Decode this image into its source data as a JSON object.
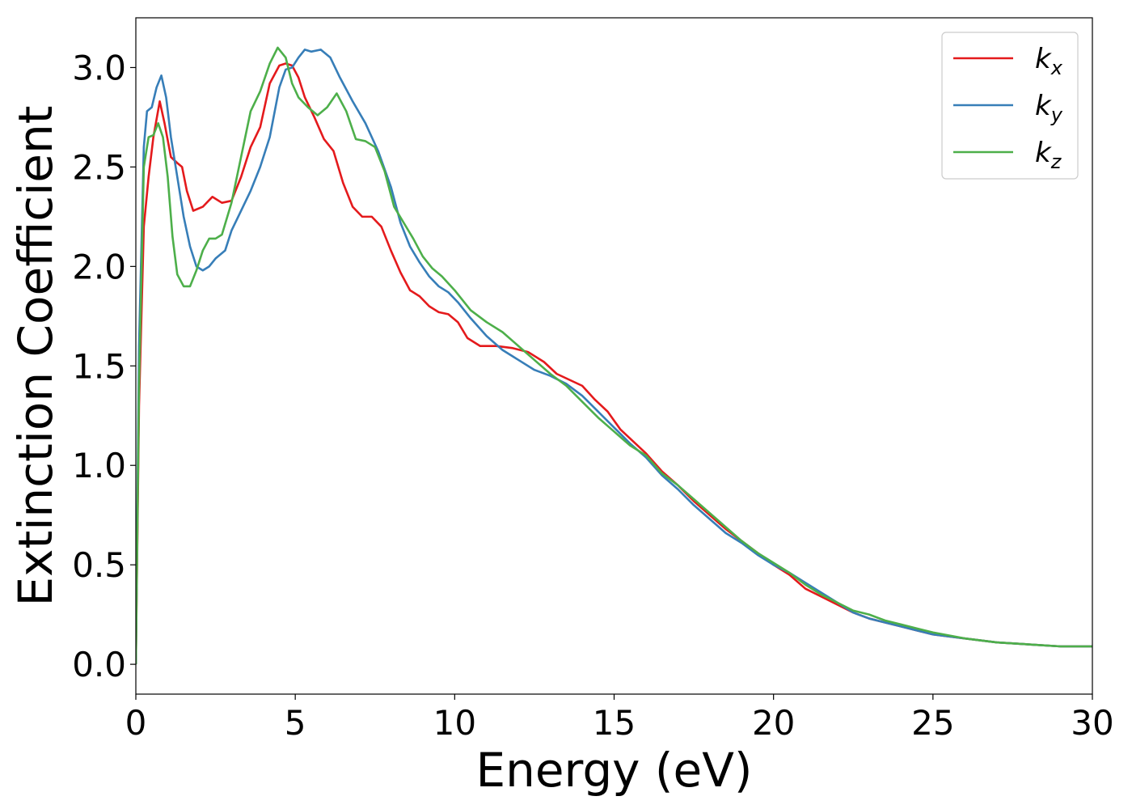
{
  "chart_data": {
    "type": "line",
    "xlabel": "Energy (eV)",
    "ylabel": "Extinction Coefficient",
    "xlim": [
      0,
      30
    ],
    "ylim": [
      -0.15,
      3.25
    ],
    "xticks": [
      0,
      5,
      10,
      15,
      20,
      25,
      30
    ],
    "yticks": [
      0.0,
      0.5,
      1.0,
      1.5,
      2.0,
      2.5,
      3.0
    ],
    "xtick_labels": [
      "0",
      "5",
      "10",
      "15",
      "20",
      "25",
      "30"
    ],
    "ytick_labels": [
      "0.0",
      "0.5",
      "1.0",
      "1.5",
      "2.0",
      "2.5",
      "3.0"
    ],
    "grid": false,
    "legend_position": "top-right",
    "series": [
      {
        "name": "k_x",
        "label_base": "k",
        "label_sub": "x",
        "color": "#e41a1c",
        "points": [
          [
            0,
            0
          ],
          [
            0.1,
            1.3
          ],
          [
            0.25,
            2.2
          ],
          [
            0.4,
            2.45
          ],
          [
            0.55,
            2.65
          ],
          [
            0.75,
            2.83
          ],
          [
            0.9,
            2.72
          ],
          [
            1.1,
            2.55
          ],
          [
            1.3,
            2.52
          ],
          [
            1.45,
            2.5
          ],
          [
            1.6,
            2.38
          ],
          [
            1.8,
            2.28
          ],
          [
            2.1,
            2.3
          ],
          [
            2.4,
            2.35
          ],
          [
            2.7,
            2.32
          ],
          [
            3.0,
            2.33
          ],
          [
            3.3,
            2.45
          ],
          [
            3.6,
            2.6
          ],
          [
            3.9,
            2.7
          ],
          [
            4.2,
            2.92
          ],
          [
            4.5,
            3.01
          ],
          [
            4.7,
            3.02
          ],
          [
            4.9,
            3.01
          ],
          [
            5.1,
            2.95
          ],
          [
            5.3,
            2.85
          ],
          [
            5.6,
            2.75
          ],
          [
            5.9,
            2.64
          ],
          [
            6.2,
            2.58
          ],
          [
            6.5,
            2.42
          ],
          [
            6.8,
            2.3
          ],
          [
            7.1,
            2.25
          ],
          [
            7.4,
            2.25
          ],
          [
            7.7,
            2.2
          ],
          [
            8.0,
            2.08
          ],
          [
            8.3,
            1.97
          ],
          [
            8.6,
            1.88
          ],
          [
            8.9,
            1.85
          ],
          [
            9.2,
            1.8
          ],
          [
            9.5,
            1.77
          ],
          [
            9.8,
            1.76
          ],
          [
            10.1,
            1.72
          ],
          [
            10.4,
            1.64
          ],
          [
            10.8,
            1.6
          ],
          [
            11.3,
            1.6
          ],
          [
            11.8,
            1.59
          ],
          [
            12.3,
            1.57
          ],
          [
            12.8,
            1.52
          ],
          [
            13.2,
            1.46
          ],
          [
            13.6,
            1.43
          ],
          [
            14.0,
            1.4
          ],
          [
            14.4,
            1.33
          ],
          [
            14.8,
            1.27
          ],
          [
            15.2,
            1.18
          ],
          [
            15.6,
            1.12
          ],
          [
            16.0,
            1.06
          ],
          [
            16.5,
            0.97
          ],
          [
            17.0,
            0.9
          ],
          [
            17.5,
            0.82
          ],
          [
            18.0,
            0.75
          ],
          [
            18.5,
            0.68
          ],
          [
            19.0,
            0.62
          ],
          [
            19.5,
            0.56
          ],
          [
            20.0,
            0.5
          ],
          [
            20.5,
            0.45
          ],
          [
            21.0,
            0.38
          ],
          [
            21.5,
            0.34
          ],
          [
            22.0,
            0.3
          ],
          [
            22.5,
            0.26
          ],
          [
            23.0,
            0.23
          ],
          [
            23.5,
            0.21
          ],
          [
            24.0,
            0.19
          ],
          [
            24.5,
            0.17
          ],
          [
            25.0,
            0.15
          ],
          [
            25.5,
            0.14
          ],
          [
            26.0,
            0.13
          ],
          [
            27.0,
            0.11
          ],
          [
            28.0,
            0.1
          ],
          [
            29.0,
            0.09
          ],
          [
            30.0,
            0.09
          ]
        ]
      },
      {
        "name": "k_y",
        "label_base": "k",
        "label_sub": "y",
        "color": "#377eb8",
        "points": [
          [
            0,
            0
          ],
          [
            0.1,
            1.6
          ],
          [
            0.25,
            2.6
          ],
          [
            0.35,
            2.78
          ],
          [
            0.5,
            2.8
          ],
          [
            0.65,
            2.9
          ],
          [
            0.8,
            2.96
          ],
          [
            0.95,
            2.85
          ],
          [
            1.1,
            2.65
          ],
          [
            1.3,
            2.45
          ],
          [
            1.5,
            2.25
          ],
          [
            1.7,
            2.1
          ],
          [
            1.9,
            2.0
          ],
          [
            2.1,
            1.98
          ],
          [
            2.3,
            2.0
          ],
          [
            2.5,
            2.04
          ],
          [
            2.8,
            2.08
          ],
          [
            3.0,
            2.18
          ],
          [
            3.3,
            2.28
          ],
          [
            3.6,
            2.38
          ],
          [
            3.9,
            2.5
          ],
          [
            4.2,
            2.65
          ],
          [
            4.5,
            2.9
          ],
          [
            4.7,
            2.99
          ],
          [
            4.9,
            3.0
          ],
          [
            5.1,
            3.05
          ],
          [
            5.3,
            3.09
          ],
          [
            5.5,
            3.08
          ],
          [
            5.8,
            3.09
          ],
          [
            6.1,
            3.05
          ],
          [
            6.4,
            2.95
          ],
          [
            6.8,
            2.83
          ],
          [
            7.2,
            2.72
          ],
          [
            7.6,
            2.58
          ],
          [
            8.0,
            2.4
          ],
          [
            8.3,
            2.22
          ],
          [
            8.6,
            2.1
          ],
          [
            8.9,
            2.02
          ],
          [
            9.2,
            1.95
          ],
          [
            9.5,
            1.9
          ],
          [
            9.8,
            1.87
          ],
          [
            10.1,
            1.82
          ],
          [
            10.5,
            1.74
          ],
          [
            11.0,
            1.65
          ],
          [
            11.5,
            1.58
          ],
          [
            12.0,
            1.53
          ],
          [
            12.5,
            1.48
          ],
          [
            13.0,
            1.45
          ],
          [
            13.5,
            1.41
          ],
          [
            14.0,
            1.35
          ],
          [
            14.5,
            1.27
          ],
          [
            15.0,
            1.19
          ],
          [
            15.5,
            1.11
          ],
          [
            16.0,
            1.04
          ],
          [
            16.5,
            0.95
          ],
          [
            17.0,
            0.88
          ],
          [
            17.5,
            0.8
          ],
          [
            18.0,
            0.73
          ],
          [
            18.5,
            0.66
          ],
          [
            19.0,
            0.61
          ],
          [
            19.5,
            0.55
          ],
          [
            20.0,
            0.5
          ],
          [
            20.5,
            0.46
          ],
          [
            21.0,
            0.41
          ],
          [
            21.5,
            0.36
          ],
          [
            22.0,
            0.31
          ],
          [
            22.5,
            0.26
          ],
          [
            23.0,
            0.23
          ],
          [
            23.5,
            0.21
          ],
          [
            24.0,
            0.19
          ],
          [
            24.5,
            0.17
          ],
          [
            25.0,
            0.15
          ],
          [
            26.0,
            0.13
          ],
          [
            27.0,
            0.11
          ],
          [
            28.0,
            0.1
          ],
          [
            29.0,
            0.09
          ],
          [
            30.0,
            0.09
          ]
        ]
      },
      {
        "name": "k_z",
        "label_base": "k",
        "label_sub": "z",
        "color": "#4daf4a",
        "points": [
          [
            0,
            0
          ],
          [
            0.1,
            1.4
          ],
          [
            0.25,
            2.5
          ],
          [
            0.4,
            2.65
          ],
          [
            0.55,
            2.66
          ],
          [
            0.7,
            2.72
          ],
          [
            0.85,
            2.65
          ],
          [
            1.0,
            2.45
          ],
          [
            1.15,
            2.15
          ],
          [
            1.3,
            1.96
          ],
          [
            1.5,
            1.9
          ],
          [
            1.7,
            1.9
          ],
          [
            1.9,
            1.98
          ],
          [
            2.1,
            2.08
          ],
          [
            2.3,
            2.14
          ],
          [
            2.5,
            2.14
          ],
          [
            2.7,
            2.16
          ],
          [
            3.0,
            2.32
          ],
          [
            3.3,
            2.55
          ],
          [
            3.6,
            2.78
          ],
          [
            3.9,
            2.88
          ],
          [
            4.2,
            3.02
          ],
          [
            4.45,
            3.1
          ],
          [
            4.7,
            3.05
          ],
          [
            4.9,
            2.92
          ],
          [
            5.1,
            2.85
          ],
          [
            5.4,
            2.8
          ],
          [
            5.7,
            2.76
          ],
          [
            6.0,
            2.8
          ],
          [
            6.3,
            2.87
          ],
          [
            6.6,
            2.78
          ],
          [
            6.9,
            2.64
          ],
          [
            7.2,
            2.63
          ],
          [
            7.5,
            2.6
          ],
          [
            7.8,
            2.48
          ],
          [
            8.1,
            2.3
          ],
          [
            8.4,
            2.22
          ],
          [
            8.7,
            2.14
          ],
          [
            9.0,
            2.05
          ],
          [
            9.3,
            1.99
          ],
          [
            9.6,
            1.95
          ],
          [
            10.0,
            1.88
          ],
          [
            10.5,
            1.78
          ],
          [
            11.0,
            1.72
          ],
          [
            11.5,
            1.67
          ],
          [
            12.0,
            1.6
          ],
          [
            12.5,
            1.53
          ],
          [
            13.0,
            1.46
          ],
          [
            13.5,
            1.4
          ],
          [
            14.0,
            1.32
          ],
          [
            14.5,
            1.24
          ],
          [
            15.0,
            1.17
          ],
          [
            15.5,
            1.1
          ],
          [
            16.0,
            1.05
          ],
          [
            16.5,
            0.96
          ],
          [
            17.0,
            0.9
          ],
          [
            17.5,
            0.83
          ],
          [
            18.0,
            0.76
          ],
          [
            18.5,
            0.69
          ],
          [
            19.0,
            0.62
          ],
          [
            19.5,
            0.56
          ],
          [
            20.0,
            0.51
          ],
          [
            20.5,
            0.46
          ],
          [
            21.0,
            0.4
          ],
          [
            21.5,
            0.35
          ],
          [
            22.0,
            0.31
          ],
          [
            22.5,
            0.27
          ],
          [
            23.0,
            0.25
          ],
          [
            23.5,
            0.22
          ],
          [
            24.0,
            0.2
          ],
          [
            24.5,
            0.18
          ],
          [
            25.0,
            0.16
          ],
          [
            26.0,
            0.13
          ],
          [
            27.0,
            0.11
          ],
          [
            28.0,
            0.1
          ],
          [
            29.0,
            0.09
          ],
          [
            30.0,
            0.09
          ]
        ]
      }
    ]
  }
}
